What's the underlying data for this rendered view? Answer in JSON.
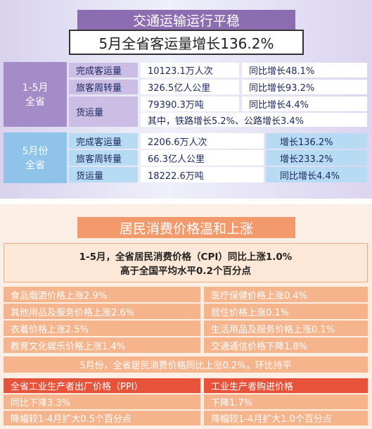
{
  "transport": {
    "title": "交通运输运行平稳",
    "headline": "5月全省客运量增长136.2%",
    "period1": {
      "label": [
        "1-5月",
        "全省"
      ],
      "rows": [
        [
          "完成客运量",
          "10123.1万人次",
          "同比增长48.1%"
        ],
        [
          "旅客周转量",
          "326.5亿人公里",
          "同比增长93.2%"
        ],
        [
          "货运量",
          "79390.3万吨",
          "同比增长4.4%"
        ]
      ],
      "note": "其中，铁路增长5.2%、公路增长3.4%"
    },
    "period2": {
      "label": [
        "5月份",
        "全省"
      ],
      "rows": [
        [
          "完成客运量",
          "2206.6万人次",
          "增长136.2%"
        ],
        [
          "旅客周转量",
          "66.3亿人公里",
          "增长233.2%"
        ],
        [
          "货运量",
          "18222.6万吨",
          "同比增长4.4%"
        ]
      ]
    }
  },
  "prices": {
    "title": "居民消费价格温和上涨",
    "highlight": [
      "1-5月，全省居民消费价格（CPI）同比上涨1.0%",
      "高于全国平均水平0.2个百分点"
    ],
    "items": [
      [
        "食品烟酒价格上涨2.9%",
        "医疗保健价格上涨0.4%"
      ],
      [
        "其他用品及服务价格上涨2.6%",
        "居住价格上涨0.1%"
      ],
      [
        "衣着价格上涨2.5%",
        "生活用品及服务价格上涨0.1%"
      ],
      [
        "教育文化娱乐价格上涨1.4%",
        "交通通信价格下降1.8%"
      ]
    ],
    "may": "5月份，全省居民消费价格同比上涨0.2%，环比持平",
    "ppi": [
      [
        "全省工业生产者出厂价格（PPI）",
        "同比下降3.3%",
        "降幅较1-4月扩大0.5个百分点"
      ],
      [
        "工业生产者购进价格",
        "下降1.7%",
        "降幅较1-4月扩大1.0个百分点"
      ]
    ]
  }
}
